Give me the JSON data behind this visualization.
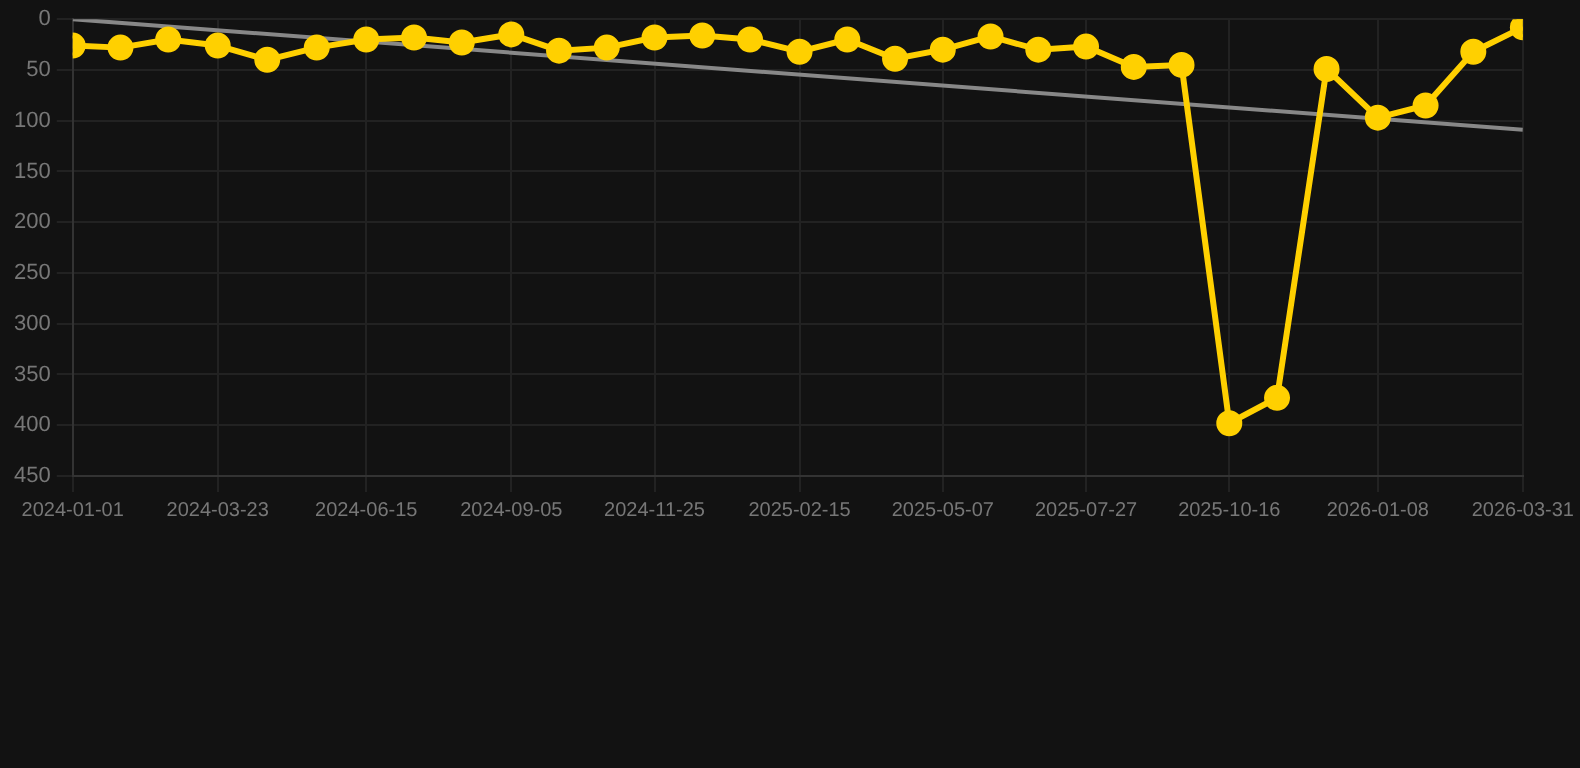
{
  "chart_data": {
    "type": "line",
    "ylim": [
      450,
      0
    ],
    "yticks": [
      0,
      50,
      100,
      150,
      200,
      250,
      300,
      350,
      400,
      450
    ],
    "xlim": [
      "2024-01-01",
      "2026-03-31"
    ],
    "xticks": [
      "2024-01-01",
      "2024-03-23",
      "2024-06-15",
      "2024-09-05",
      "2024-11-25",
      "2025-02-15",
      "2025-05-07",
      "2025-07-27",
      "2025-10-16",
      "2026-01-08",
      "2026-03-31"
    ],
    "x": [
      "2024-01-01",
      "2024-01-28",
      "2024-02-24",
      "2024-03-23",
      "2024-04-20",
      "2024-05-18",
      "2024-06-15",
      "2024-07-12",
      "2024-08-08",
      "2024-09-05",
      "2024-10-02",
      "2024-10-29",
      "2024-11-25",
      "2024-12-22",
      "2025-01-18",
      "2025-02-15",
      "2025-03-14",
      "2025-04-10",
      "2025-05-07",
      "2025-06-03",
      "2025-06-30",
      "2025-07-27",
      "2025-08-23",
      "2025-09-19",
      "2025-10-16",
      "2025-11-12",
      "2025-12-10",
      "2026-01-08",
      "2026-02-04",
      "2026-03-03",
      "2026-03-31"
    ],
    "series": [
      {
        "color": "#ffd000",
        "marker": "circle",
        "values": [
          26,
          28,
          20,
          26,
          40,
          28,
          20,
          18,
          23,
          15,
          31,
          28,
          18,
          16,
          20,
          32,
          20,
          39,
          30,
          17,
          30,
          27,
          47,
          45,
          398,
          373,
          49,
          97,
          85,
          32,
          8
        ]
      },
      {
        "type": "line",
        "color": "#888888",
        "marker": "none",
        "x": [
          "2024-01-01",
          "2026-03-31"
        ],
        "values": [
          0,
          109
        ]
      }
    ],
    "grid": true,
    "legend": false
  }
}
